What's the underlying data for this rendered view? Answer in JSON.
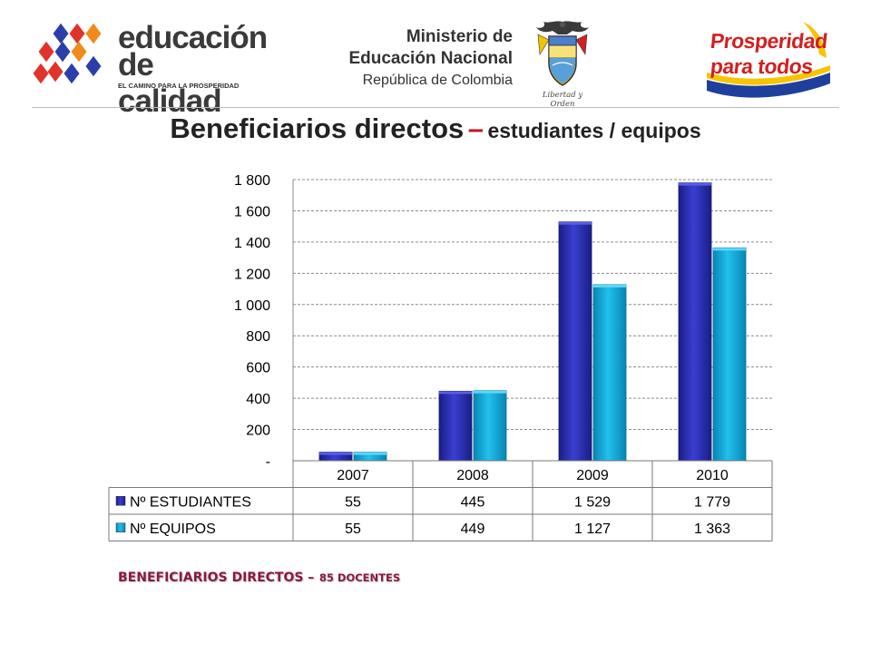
{
  "header": {
    "educacion": {
      "line1": "educación",
      "line2": "de calidad",
      "tagline": "EL CAMINO PARA LA PROSPERIDAD"
    },
    "ministerio": {
      "line1": "Ministerio de",
      "line2": "Educación Nacional",
      "line3": "República de Colombia"
    },
    "escudo": {
      "motto": "Libertad y Orden"
    },
    "prosperidad": {
      "line1": "Prosperidad",
      "line2": "para todos"
    }
  },
  "title": {
    "main": "Beneficiarios directos",
    "dash": "–",
    "sub": "estudiantes / equipos"
  },
  "chart_data": {
    "type": "bar",
    "categories": [
      "2007",
      "2008",
      "2009",
      "2010"
    ],
    "series": [
      {
        "name": "Nº ESTUDIANTES",
        "values": [
          55,
          445,
          1529,
          1779
        ],
        "labels": [
          "55",
          "445",
          "1 529",
          "1 779"
        ],
        "color": "#2b2fb0"
      },
      {
        "name": "Nº EQUIPOS",
        "values": [
          55,
          449,
          1127,
          1363
        ],
        "labels": [
          "55",
          "449",
          "1 127",
          "1 363"
        ],
        "color": "#0aa6d9"
      }
    ],
    "ylim": [
      0,
      1800
    ],
    "yticks": [
      0,
      200,
      400,
      600,
      800,
      1000,
      1200,
      1400,
      1600,
      1800
    ],
    "ytick_labels": [
      "-",
      "200",
      "400",
      "600",
      "800",
      "1 000",
      "1 200",
      "1 400",
      "1 600",
      "1 800"
    ],
    "grid": true,
    "legend": "data-table-below"
  },
  "footer": {
    "main": "BENEFICIARIOS DIRECTOS –",
    "sub": "85 DOCENTES"
  }
}
